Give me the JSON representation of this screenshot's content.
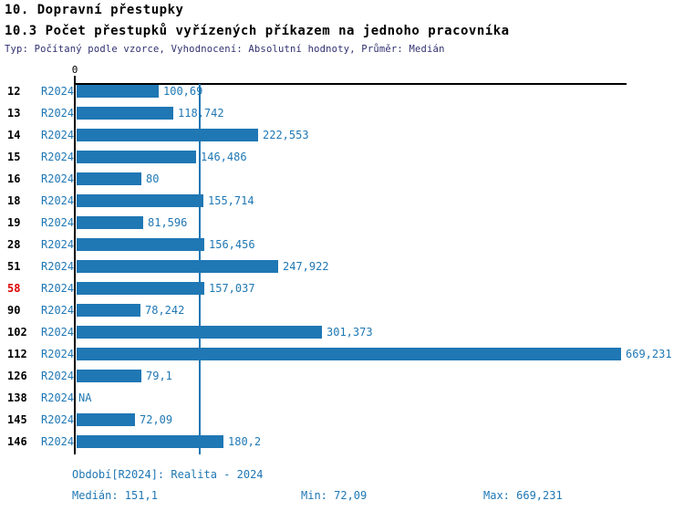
{
  "header": {
    "title": "10. Dopravní přestupky",
    "subtitle": "10.3 Počet přestupků vyřízených příkazem na jednoho pracovníka",
    "meta": "Typ: Počítaný podle vzorce, Vyhodnocení: Absolutní hodnoty, Průměr: Medián"
  },
  "axis": {
    "zero_tick_label": "0"
  },
  "chart_data": {
    "type": "bar",
    "orientation": "horizontal",
    "series_name": "R2024",
    "categories": [
      "12",
      "13",
      "14",
      "15",
      "16",
      "18",
      "19",
      "28",
      "51",
      "58",
      "90",
      "102",
      "112",
      "126",
      "138",
      "145",
      "146"
    ],
    "values": [
      100.69,
      118.742,
      222.553,
      146.486,
      80,
      155.714,
      81.596,
      156.456,
      247.922,
      157.037,
      78.242,
      301.373,
      669.231,
      79.1,
      null,
      72.09,
      180.2
    ],
    "value_labels": [
      "100,69",
      "118,742",
      "222,553",
      "146,486",
      "80",
      "155,714",
      "81,596",
      "156,456",
      "247,922",
      "157,037",
      "78,242",
      "301,373",
      "669,231",
      "79,1",
      "NA",
      "72,09",
      "180,2"
    ],
    "highlighted_categories": [
      "58"
    ],
    "na_label": "NA",
    "xlim": [
      0,
      669.231
    ],
    "median": 151.1,
    "min": 72.09,
    "max": 669.231,
    "grid": false,
    "legend_position": "none",
    "title": "10.3 Počet přestupků vyřízených příkazem na jednoho pracovníka",
    "xlabel": "",
    "ylabel": ""
  },
  "footer": {
    "period_label": "Období[R2024]: Realita - 2024",
    "median_label": "Medián: 151,1",
    "min_label": "Min: 72,09",
    "max_label": "Max: 669,231"
  },
  "colors": {
    "bar": "#1f77b4",
    "value_text": "#1f77b4",
    "category_text": "#000000",
    "highlight_text": "#dd0000",
    "meta_text": "#303070",
    "axis": "#000000",
    "median_line": "#1f77b4"
  }
}
